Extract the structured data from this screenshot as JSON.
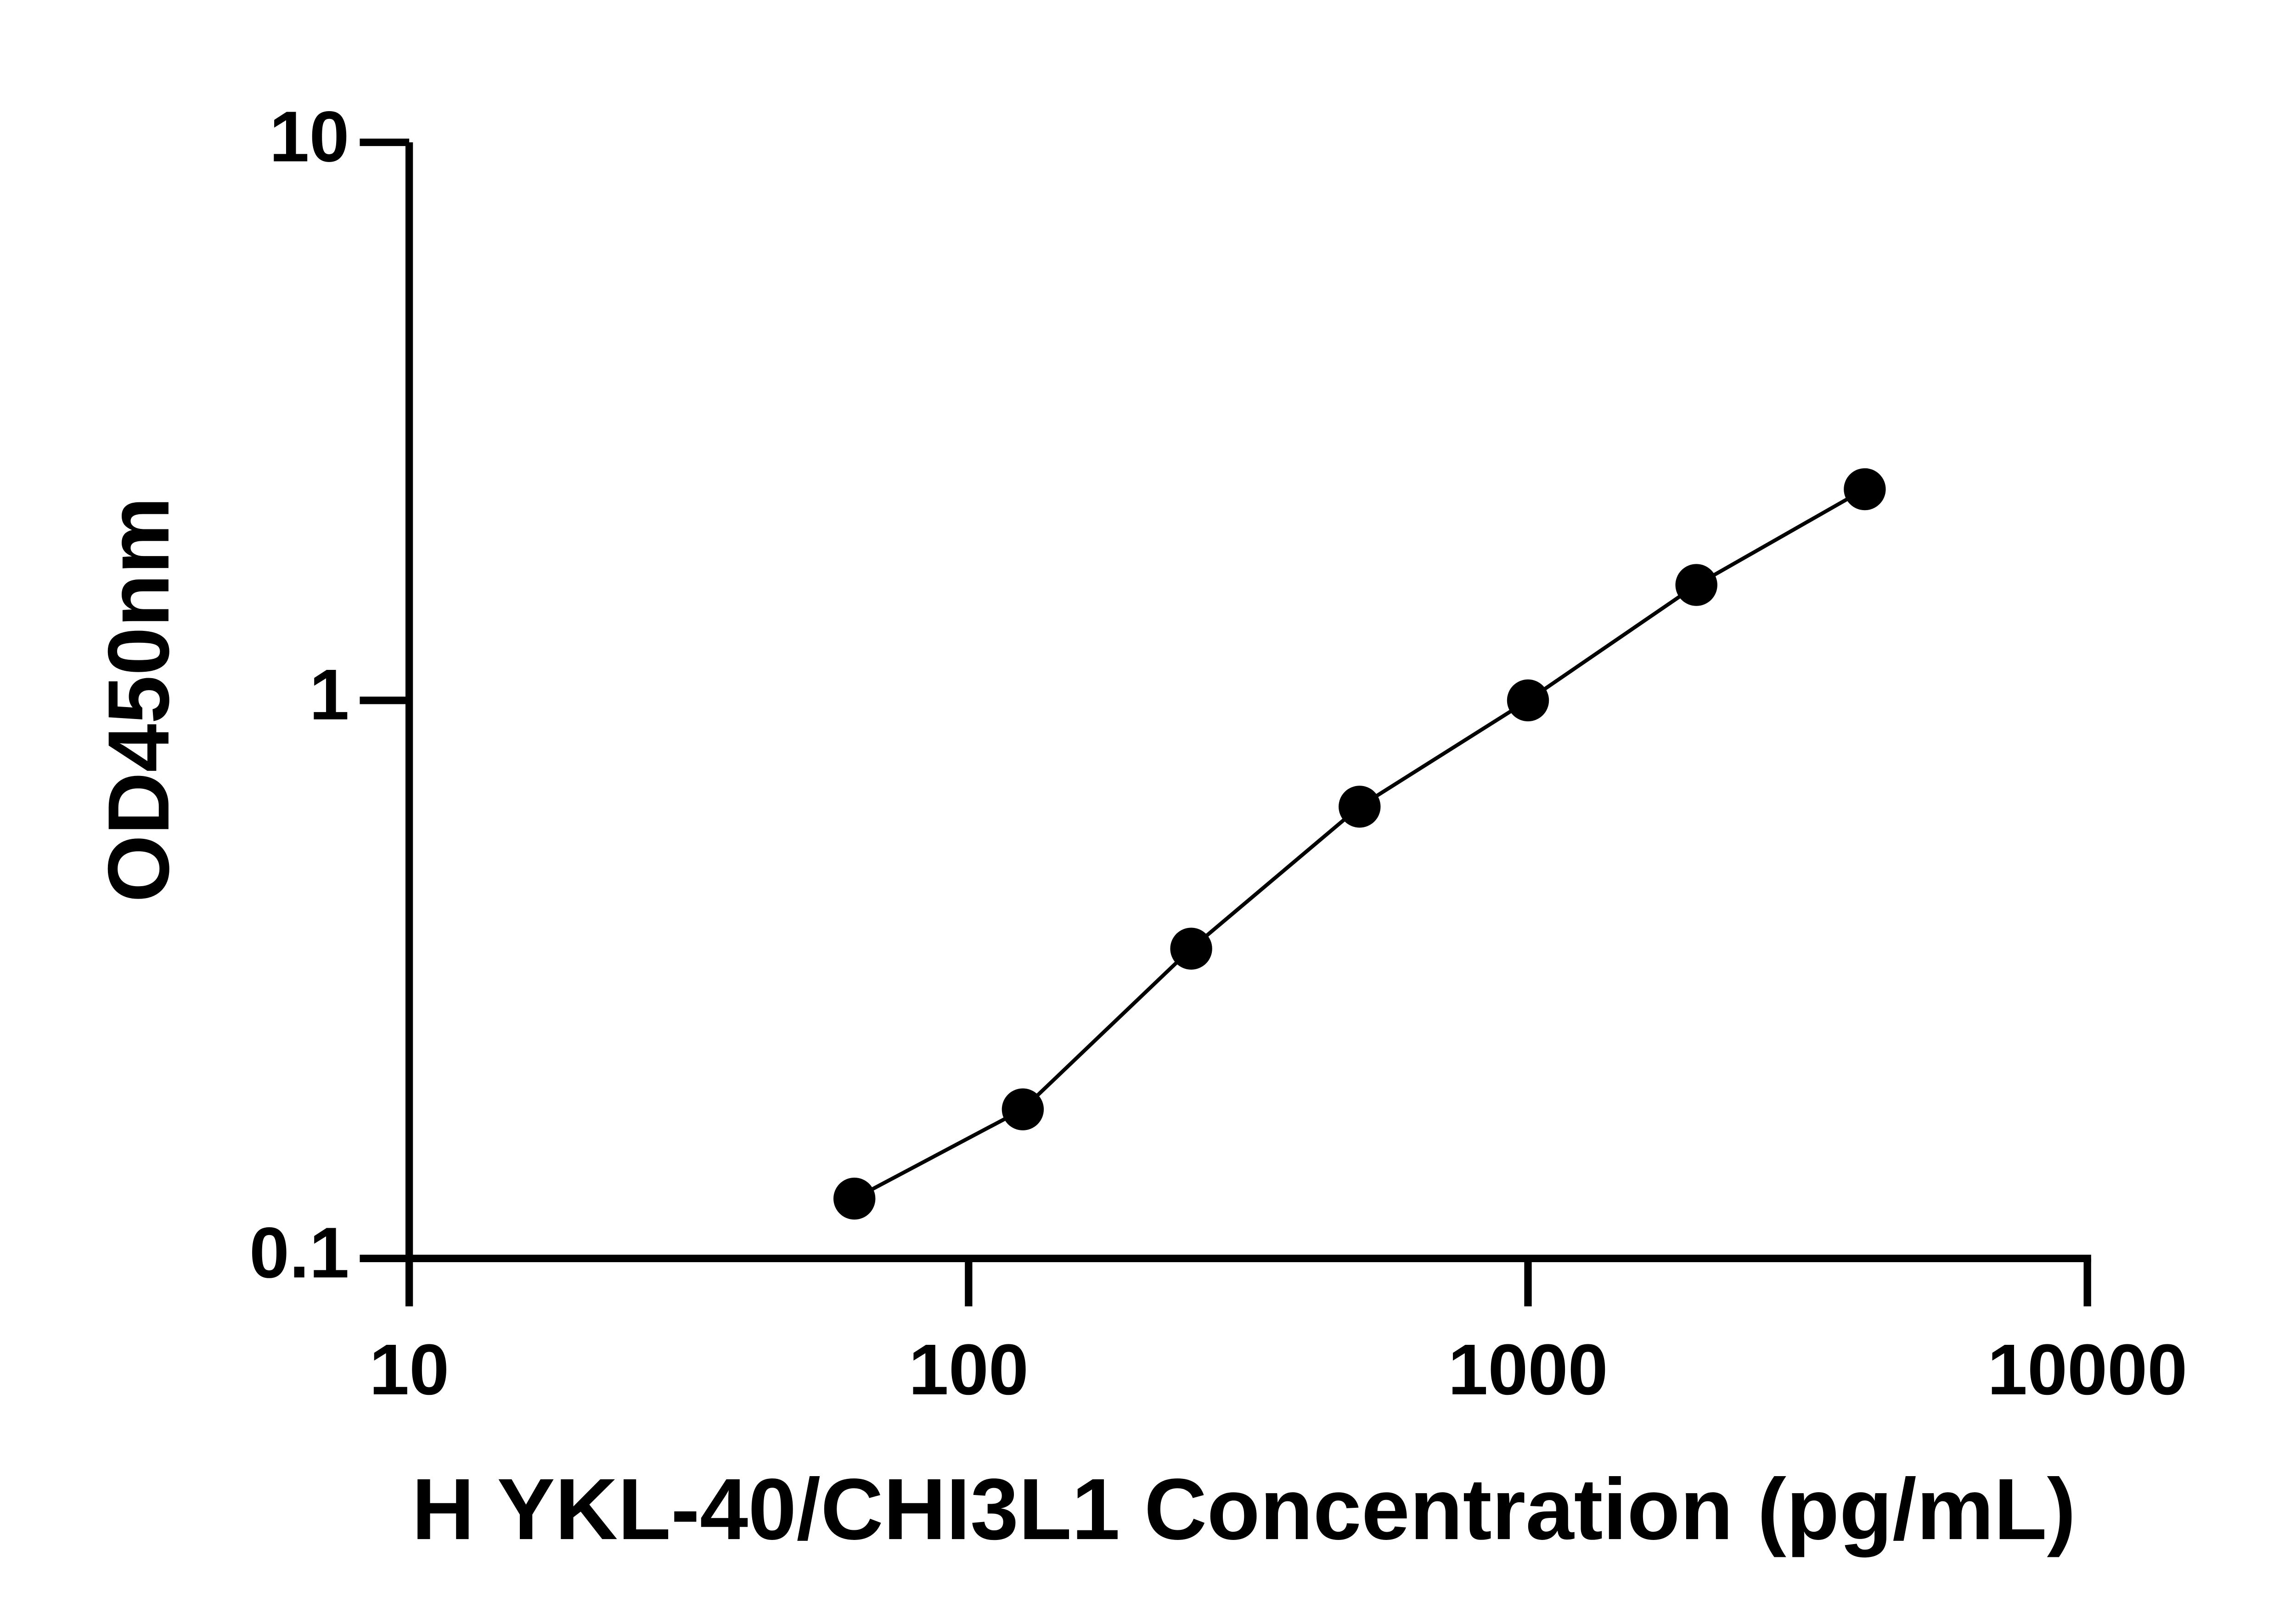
{
  "chart_data": {
    "type": "scatter",
    "x_label": "H YKL-40/CHI3L1 Concentration (pg/mL)",
    "y_label": "OD450nm",
    "xscale": "log",
    "yscale": "log",
    "xlim": [
      10,
      10000
    ],
    "ylim": [
      0.1,
      10
    ],
    "xticks": [
      10,
      100,
      1000,
      10000
    ],
    "yticks": [
      0.1,
      1,
      10
    ],
    "grid": false,
    "fit_line": true,
    "series": [
      {
        "color": "#000000",
        "x": [
          62.5,
          125,
          250,
          500,
          1000,
          2000,
          4000
        ],
        "values": [
          0.128,
          0.185,
          0.359,
          0.645,
          1.0,
          1.61,
          2.39
        ]
      }
    ]
  }
}
